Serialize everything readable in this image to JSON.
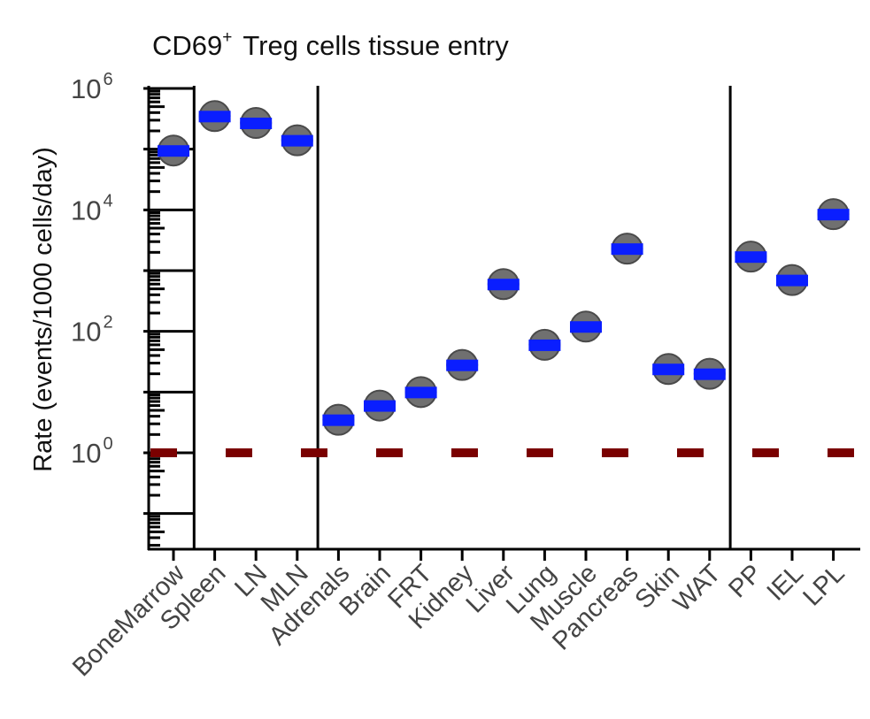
{
  "chart_data": {
    "type": "scatter",
    "title": "Treg cells tissue entry",
    "title_prefix": "CD69",
    "title_superscript": "+",
    "ylabel": "Rate (events/1000 cells/day)",
    "yscale": "log10",
    "ylim": [
      0.03,
      1000000
    ],
    "ytick_labels": [
      {
        "base": "10",
        "exp": "0",
        "value": 1
      },
      {
        "base": "10",
        "exp": "2",
        "value": 100
      },
      {
        "base": "10",
        "exp": "4",
        "value": 10000
      },
      {
        "base": "10",
        "exp": "6",
        "value": 1000000
      }
    ],
    "categories": [
      "BoneMarrow",
      "Spleen",
      "LN",
      "MLN",
      "Adrenals",
      "Brain",
      "FRT",
      "Kidney",
      "Liver",
      "Lung",
      "Muscle",
      "Pancreas",
      "Skin",
      "WAT",
      "PP",
      "IEL",
      "LPL"
    ],
    "values": [
      95000,
      350000,
      270000,
      140000,
      3.5,
      6,
      10,
      28,
      600,
      60,
      120,
      2300,
      24,
      20,
      1700,
      700,
      8500
    ],
    "interval_low": [
      85000,
      300000,
      230000,
      120000,
      2.5,
      5,
      8,
      24,
      540,
      50,
      100,
      2100,
      21,
      17,
      1450,
      600,
      7800
    ],
    "interval_high": [
      105000,
      410000,
      320000,
      160000,
      4.5,
      7,
      13,
      34,
      670,
      72,
      145,
      2500,
      28,
      23,
      2000,
      820,
      9300
    ],
    "reference_line": 1,
    "group_separators_after": [
      "BoneMarrow",
      "MLN",
      "WAT"
    ],
    "colors": {
      "estimate": "#0a1eff",
      "interval": "#c8c8c8",
      "point": "#707070",
      "reference": "#7a0000",
      "axis": "#000000"
    }
  }
}
